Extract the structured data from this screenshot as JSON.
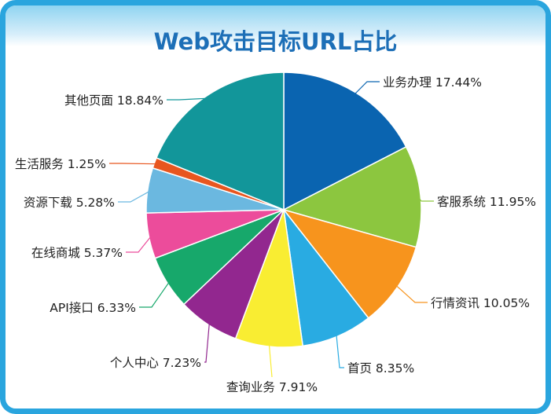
{
  "chart_data": {
    "type": "pie",
    "title": "Web攻击目标URL占比",
    "slices": [
      {
        "label": "业务办理",
        "value": 17.44,
        "display": "业务办理 17.44%",
        "color": "#0a64b0"
      },
      {
        "label": "客服系统",
        "value": 11.95,
        "display": "客服系统 11.95%",
        "color": "#8cc63f"
      },
      {
        "label": "行情资讯",
        "value": 10.05,
        "display": "行情资讯 10.05%",
        "color": "#f7941d"
      },
      {
        "label": "首页",
        "value": 8.35,
        "display": "首页 8.35%",
        "color": "#29abe2"
      },
      {
        "label": "查询业务",
        "value": 7.91,
        "display": "查询业务 7.91%",
        "color": "#f9ed32"
      },
      {
        "label": "个人中心",
        "value": 7.23,
        "display": "个人中心 7.23%",
        "color": "#92278f"
      },
      {
        "label": "API接口",
        "value": 6.33,
        "display": "API接口 6.33%",
        "color": "#17a86b"
      },
      {
        "label": "在线商城",
        "value": 5.37,
        "display": "在线商城 5.37%",
        "color": "#ec4c9b"
      },
      {
        "label": "资源下载",
        "value": 5.28,
        "display": "资源下载 5.28%",
        "color": "#6bb8e0"
      },
      {
        "label": "生活服务",
        "value": 1.25,
        "display": "生活服务 1.25%",
        "color": "#e8561f"
      },
      {
        "label": "其他页面",
        "value": 18.84,
        "display": "其他页面 18.84%",
        "color": "#12969a"
      }
    ]
  }
}
